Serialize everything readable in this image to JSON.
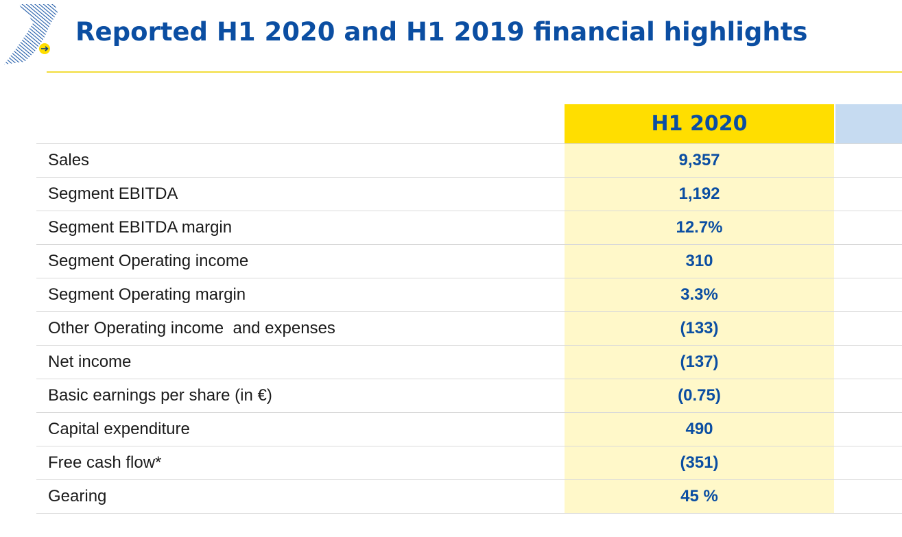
{
  "slide": {
    "title": "Reported H1 2020 and H1 2019 financial highlights",
    "logo_icon": "hatched-shard-arrow-icon"
  },
  "colors": {
    "title_blue": "#0b4ea2",
    "header_yellow": "#ffde00",
    "column_pale_yellow": "#fff8c9",
    "header_light_blue": "#c6dbf1",
    "rule_yellow": "#f2dd3b"
  },
  "table": {
    "columns": [
      "H1 2020",
      ""
    ],
    "rows": [
      {
        "label": "Sales",
        "h1_2020": "9,357"
      },
      {
        "label": "Segment EBITDA",
        "h1_2020": "1,192"
      },
      {
        "label": "Segment EBITDA margin",
        "h1_2020": "12.7%"
      },
      {
        "label": "Segment Operating income",
        "h1_2020": "310"
      },
      {
        "label": "Segment Operating margin",
        "h1_2020": "3.3%"
      },
      {
        "label": "Other Operating income  and expenses",
        "h1_2020": "(133)"
      },
      {
        "label": "Net income",
        "h1_2020": "(137)"
      },
      {
        "label": "Basic earnings per share (in €)",
        "h1_2020": "(0.75)"
      },
      {
        "label": "Capital expenditure",
        "h1_2020": "490"
      },
      {
        "label": "Free cash flow*",
        "h1_2020": "(351)"
      },
      {
        "label": "Gearing",
        "h1_2020": "45 %"
      }
    ]
  }
}
